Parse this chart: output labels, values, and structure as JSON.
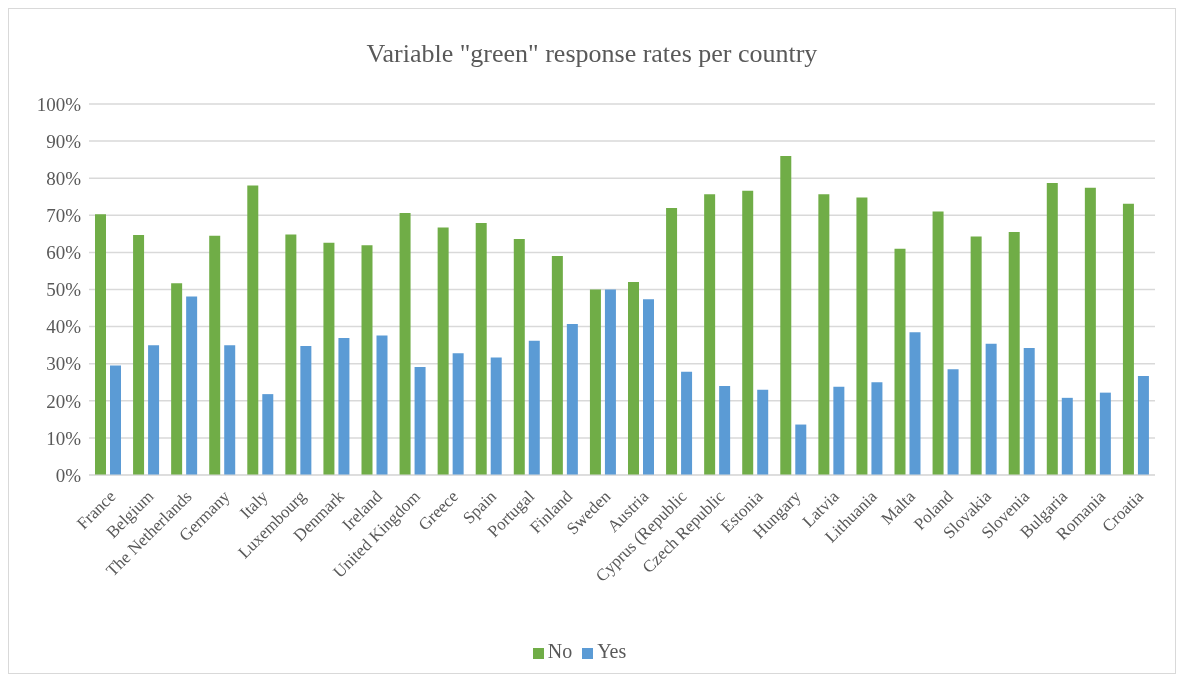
{
  "chart_data": {
    "type": "bar",
    "title": "Variable \"green\" response rates per country",
    "categories": [
      "France",
      "Belgium",
      "The Netherlands",
      "Germany",
      "Italy",
      "Luxembourg",
      "Denmark",
      "Ireland",
      "United Kingdom",
      "Greece",
      "Spain",
      "Portugal",
      "Finland",
      "Sweden",
      "Austria",
      "Cyprus (Republic",
      "Czech Republic",
      "Estonia",
      "Hungary",
      "Latvia",
      "Lithuania",
      "Malta",
      "Poland",
      "Slovakia",
      "Slovenia",
      "Bulgaria",
      "Romania",
      "Croatia"
    ],
    "series": [
      {
        "name": "No",
        "color": "#70ad47",
        "values": [
          70.3,
          64.7,
          51.7,
          64.5,
          78.0,
          64.8,
          62.6,
          61.9,
          70.6,
          66.7,
          67.9,
          63.6,
          59.0,
          50.0,
          52.0,
          72.0,
          75.7,
          76.6,
          86.0,
          75.7,
          74.8,
          61.0,
          71.0,
          64.3,
          65.5,
          78.7,
          77.4,
          73.1
        ]
      },
      {
        "name": "Yes",
        "color": "#5b9bd5",
        "values": [
          29.5,
          35.0,
          48.1,
          35.0,
          21.8,
          34.8,
          36.9,
          37.6,
          29.1,
          32.8,
          31.7,
          36.2,
          40.7,
          50.0,
          47.4,
          27.8,
          24.0,
          23.0,
          13.6,
          23.8,
          25.0,
          38.5,
          28.5,
          35.4,
          34.2,
          20.8,
          22.2,
          26.7
        ]
      }
    ],
    "ylim": [
      0,
      100
    ],
    "yticks": [
      {
        "value": 0,
        "label": "0%"
      },
      {
        "value": 10,
        "label": "10%"
      },
      {
        "value": 20,
        "label": "20%"
      },
      {
        "value": 30,
        "label": "30%"
      },
      {
        "value": 40,
        "label": "40%"
      },
      {
        "value": 50,
        "label": "50%"
      },
      {
        "value": 60,
        "label": "60%"
      },
      {
        "value": 70,
        "label": "70%"
      },
      {
        "value": 80,
        "label": "80%"
      },
      {
        "value": 90,
        "label": "90%"
      },
      {
        "value": 100,
        "label": "100%"
      }
    ],
    "grid": "y",
    "legend": "bottom"
  }
}
